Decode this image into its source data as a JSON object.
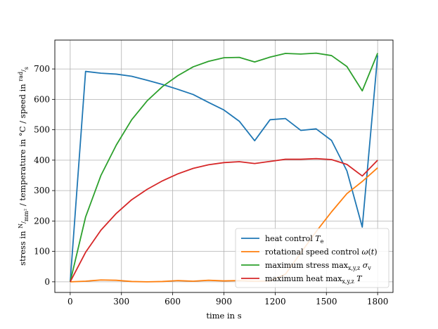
{
  "chart_data": {
    "type": "line",
    "title": "",
    "xlabel": "time in s",
    "ylabel": "stress in N/mm² / temperature in °C / speed in rad/s",
    "xlim": [
      -90,
      1890
    ],
    "ylim": [
      -35,
      795
    ],
    "xticks": [
      0,
      300,
      600,
      900,
      1200,
      1500,
      1800
    ],
    "yticks": [
      0,
      100,
      200,
      300,
      400,
      500,
      600,
      700
    ],
    "grid": true,
    "legend_position": "bottom-right",
    "series": [
      {
        "name": "heat control T_e",
        "color": "#1f77b4",
        "x": [
          0,
          90,
          180,
          270,
          360,
          450,
          540,
          630,
          720,
          810,
          900,
          990,
          1080,
          1170,
          1260,
          1350,
          1440,
          1530,
          1620,
          1710,
          1800
        ],
        "y": [
          0,
          692,
          686,
          683,
          676,
          663,
          649,
          633,
          616,
          590,
          565,
          528,
          464,
          533,
          537,
          498,
          503,
          465,
          365,
          180,
          745
        ]
      },
      {
        "name": "rotational speed control ω(t)",
        "color": "#ff7f0e",
        "x": [
          0,
          90,
          180,
          270,
          360,
          450,
          540,
          630,
          720,
          810,
          900,
          990,
          1080,
          1170,
          1260,
          1350,
          1440,
          1530,
          1620,
          1710,
          1800
        ],
        "y": [
          0,
          2,
          6,
          5,
          1,
          0,
          1,
          4,
          2,
          5,
          3,
          4,
          2,
          3,
          25,
          95,
          165,
          230,
          290,
          330,
          375
        ]
      },
      {
        "name": "maximum stress max_{x,y,z} σ_v",
        "color": "#2ca02c",
        "x": [
          0,
          90,
          180,
          270,
          360,
          450,
          540,
          630,
          720,
          810,
          900,
          990,
          1080,
          1170,
          1260,
          1350,
          1440,
          1530,
          1620,
          1710,
          1800
        ],
        "y": [
          0,
          213,
          350,
          450,
          533,
          595,
          642,
          678,
          707,
          725,
          737,
          738,
          723,
          739,
          751,
          749,
          752,
          744,
          708,
          628,
          752
        ]
      },
      {
        "name": "maximum heat max_{x,y,z} T",
        "color": "#d62728",
        "x": [
          0,
          90,
          180,
          270,
          360,
          450,
          540,
          630,
          720,
          810,
          900,
          990,
          1080,
          1170,
          1260,
          1350,
          1440,
          1530,
          1620,
          1710,
          1800
        ],
        "y": [
          0,
          97,
          170,
          225,
          270,
          304,
          332,
          355,
          373,
          385,
          392,
          395,
          389,
          396,
          403,
          403,
          405,
          402,
          386,
          348,
          400
        ]
      }
    ]
  }
}
